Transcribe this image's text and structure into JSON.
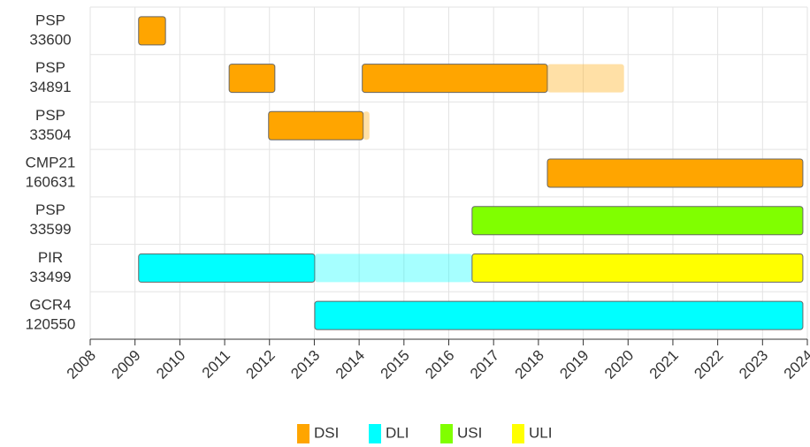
{
  "chart_data": {
    "type": "timeline",
    "categories": [
      [
        "PSP",
        "33600"
      ],
      [
        "PSP",
        "34891"
      ],
      [
        "PSP",
        "33504"
      ],
      [
        "CMP21",
        "160631"
      ],
      [
        "PSP",
        "33599"
      ],
      [
        "PIR",
        "33499"
      ],
      [
        "GCR4",
        "120550"
      ]
    ],
    "xlim": [
      2008,
      2024
    ],
    "xticks": [
      2008,
      2009,
      2010,
      2011,
      2012,
      2013,
      2014,
      2015,
      2016,
      2017,
      2018,
      2019,
      2020,
      2021,
      2022,
      2023,
      2024
    ],
    "grid": true,
    "legend": "bottom",
    "series": [
      {
        "name": "DSI",
        "color": "#ffa500",
        "bars": [
          {
            "row": 0,
            "start": 2009.08,
            "end": 2009.68,
            "faded": false
          },
          {
            "row": 1,
            "start": 2011.1,
            "end": 2012.12,
            "faded": false
          },
          {
            "row": 1,
            "start": 2014.07,
            "end": 2018.2,
            "faded": false
          },
          {
            "row": 1,
            "start": 2018.2,
            "end": 2019.91,
            "faded": true
          },
          {
            "row": 2,
            "start": 2011.98,
            "end": 2014.09,
            "faded": false
          },
          {
            "row": 2,
            "start": 2014.09,
            "end": 2014.23,
            "faded": true
          },
          {
            "row": 3,
            "start": 2018.2,
            "end": 2023.9,
            "faded": false
          }
        ]
      },
      {
        "name": "DLI",
        "color": "#00ffff",
        "bars": [
          {
            "row": 5,
            "start": 2009.08,
            "end": 2013.01,
            "faded": false
          },
          {
            "row": 5,
            "start": 2013.01,
            "end": 2016.52,
            "faded": true
          },
          {
            "row": 6,
            "start": 2013.01,
            "end": 2023.9,
            "faded": false
          }
        ]
      },
      {
        "name": "USI",
        "color": "#80ff00",
        "bars": [
          {
            "row": 4,
            "start": 2016.52,
            "end": 2023.9,
            "faded": false
          }
        ]
      },
      {
        "name": "ULI",
        "color": "#ffff00",
        "bars": [
          {
            "row": 5,
            "start": 2016.52,
            "end": 2023.9,
            "faded": false
          }
        ]
      }
    ]
  }
}
